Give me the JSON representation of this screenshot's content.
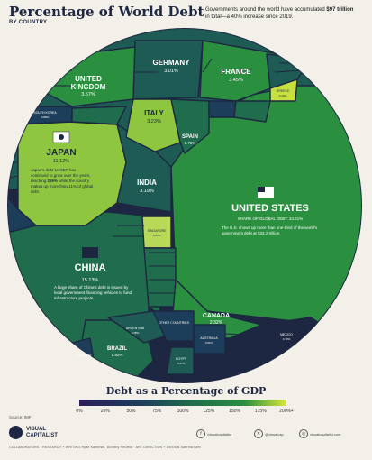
{
  "header": {
    "title": "Percentage of World Debt",
    "subtitle": "BY COUNTRY",
    "intro_part1": "Governments around the world have accumulated ",
    "intro_bold": "$97 trillion",
    "intro_part2": " in total—a 40% increase since 2019."
  },
  "chart_data": {
    "type": "treemap",
    "title": "Percentage of World Debt",
    "subtitle": "BY COUNTRY",
    "values_unit": "% of world debt",
    "color_scale": {
      "title": "Debt as a Percentage of GDP",
      "ticks": [
        "0%",
        "25%",
        "50%",
        "75%",
        "100%",
        "125%",
        "150%",
        "175%",
        "200%+"
      ]
    },
    "countries": [
      {
        "name": "UNITED STATES",
        "share": 34.21,
        "note": "SHARE OF GLOBAL DEBT: 34.21%",
        "desc": "The U.S. shows up more than one-third of the world's government debt at $33.2 trillion."
      },
      {
        "name": "CHINA",
        "share": 15.13,
        "desc": "A large share of China's debt is issued by local government financing vehicles to fund infrastructure projects."
      },
      {
        "name": "JAPAN",
        "share": 11.12,
        "desc_part1": "Japan's debt-to-GDP has continued to grow over the years, reaching ",
        "desc_bold": "255%",
        "desc_part2": " while the country makes up more than 11% of global debt."
      },
      {
        "name": "UNITED KINGDOM",
        "share": 3.57
      },
      {
        "name": "FRANCE",
        "share": 3.45
      },
      {
        "name": "ITALY",
        "share": 3.23
      },
      {
        "name": "INDIA",
        "share": 3.19
      },
      {
        "name": "GERMANY",
        "share": 3.01
      },
      {
        "name": "CANADA",
        "share": 2.32
      },
      {
        "name": "BRAZIL",
        "share": 1.92
      },
      {
        "name": "SPAIN",
        "share": 1.75
      },
      {
        "name": "SOUTH KOREA",
        "share": 0.88
      },
      {
        "name": "MEXICO",
        "share": 0.79
      },
      {
        "name": "GREECE",
        "share": 0.4
      },
      {
        "name": "SINGAPORE",
        "share": 0.84
      },
      {
        "name": "ARGENTINA",
        "share": 0.28
      },
      {
        "name": "AUSTRALIA",
        "share": 0.91
      },
      {
        "name": "EGYPT",
        "share": 0.37
      },
      {
        "name": "OTHER COUNTRIES",
        "share": 0.0
      },
      {
        "name": "COLOMBIA",
        "share": 0.0
      }
    ]
  },
  "footer": {
    "source": "Source: IMF",
    "brand_line1": "VISUAL",
    "brand_line2": "CAPITALIST",
    "social": [
      {
        "icon": "facebook-icon",
        "handle": "/visualcapitalist"
      },
      {
        "icon": "x-icon",
        "handle": "@visualcap"
      },
      {
        "icon": "web-icon",
        "handle": "visualcapitalist.com"
      }
    ],
    "credits": "COLLABORATORS · RESEARCH + WRITING Ryan Kaminski, Dorothy Neufeld · ART DIRECTION + DESIGN Sabrina Lam"
  }
}
